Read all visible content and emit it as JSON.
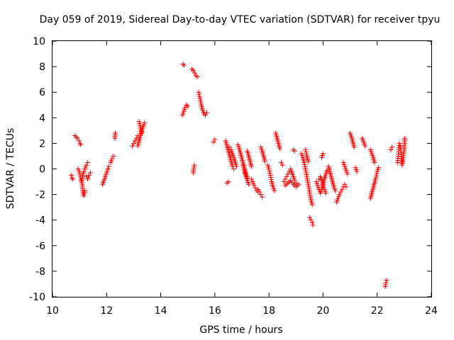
{
  "chart_data": {
    "type": "scatter",
    "title": "Day 059 of 2019, Sidereal Day-to-day VTEC variation (SDTVAR) for receiver tpyu",
    "xlabel": "GPS time / hours",
    "ylabel": "SDTVAR / TECUs",
    "xlim": [
      10,
      24
    ],
    "ylim": [
      -10,
      10
    ],
    "xticks": [
      10,
      12,
      14,
      16,
      18,
      20,
      22,
      24
    ],
    "yticks": [
      -10,
      -8,
      -6,
      -4,
      -2,
      0,
      2,
      4,
      6,
      8,
      10
    ],
    "grid": false,
    "marker": "+",
    "color": "#ff0000",
    "segments": [
      [
        [
          10.7,
          -0.5
        ],
        [
          10.72,
          -0.7
        ],
        [
          10.74,
          -0.8
        ]
      ],
      [
        [
          10.82,
          2.6
        ],
        [
          10.88,
          2.5
        ],
        [
          10.92,
          2.4
        ],
        [
          10.98,
          2.2
        ],
        [
          11.02,
          2.0
        ],
        [
          11.04,
          1.9
        ]
      ],
      [
        [
          10.95,
          0.0
        ],
        [
          11.0,
          -0.3
        ],
        [
          11.05,
          -0.8
        ],
        [
          11.1,
          -1.2
        ],
        [
          11.12,
          -1.8
        ],
        [
          11.15,
          -2.1
        ],
        [
          11.2,
          -1.7
        ]
      ],
      [
        [
          11.08,
          -0.9
        ],
        [
          11.12,
          -0.5
        ],
        [
          11.16,
          -0.2
        ],
        [
          11.2,
          0.0
        ],
        [
          11.25,
          0.3
        ],
        [
          11.3,
          0.5
        ]
      ],
      [
        [
          11.25,
          -0.6
        ],
        [
          11.3,
          -0.8
        ],
        [
          11.35,
          -0.5
        ],
        [
          11.4,
          -0.3
        ]
      ],
      [
        [
          11.85,
          -1.2
        ],
        [
          11.9,
          -0.9
        ],
        [
          11.95,
          -0.6
        ],
        [
          12.0,
          -0.3
        ],
        [
          12.05,
          0.0
        ],
        [
          12.08,
          0.2
        ]
      ],
      [
        [
          12.15,
          0.5
        ],
        [
          12.2,
          0.8
        ],
        [
          12.25,
          1.0
        ]
      ],
      [
        [
          12.3,
          2.4
        ],
        [
          12.32,
          2.8
        ]
      ],
      [
        [
          12.95,
          1.8
        ],
        [
          13.0,
          2.0
        ],
        [
          13.05,
          2.2
        ],
        [
          13.1,
          2.4
        ],
        [
          13.15,
          2.6
        ]
      ],
      [
        [
          13.15,
          1.8
        ],
        [
          13.2,
          2.2
        ],
        [
          13.25,
          2.6
        ],
        [
          13.3,
          3.0
        ],
        [
          13.35,
          3.3
        ],
        [
          13.4,
          3.6
        ]
      ],
      [
        [
          13.2,
          3.7
        ],
        [
          13.25,
          3.2
        ],
        [
          13.3,
          2.8
        ]
      ],
      [
        [
          14.82,
          8.2
        ],
        [
          14.86,
          8.1
        ]
      ],
      [
        [
          14.8,
          4.2
        ],
        [
          14.85,
          4.5
        ],
        [
          14.9,
          4.8
        ],
        [
          14.95,
          5.0
        ],
        [
          15.0,
          4.9
        ]
      ],
      [
        [
          15.15,
          7.8
        ],
        [
          15.2,
          7.7
        ],
        [
          15.25,
          7.5
        ],
        [
          15.3,
          7.3
        ],
        [
          15.35,
          7.2
        ]
      ],
      [
        [
          15.2,
          -0.3
        ],
        [
          15.22,
          0.0
        ],
        [
          15.24,
          0.3
        ]
      ],
      [
        [
          15.4,
          6.0
        ],
        [
          15.45,
          5.5
        ],
        [
          15.5,
          5.0
        ],
        [
          15.55,
          4.6
        ],
        [
          15.6,
          4.3
        ],
        [
          15.65,
          4.2
        ],
        [
          15.7,
          4.4
        ]
      ],
      [
        [
          15.95,
          2.1
        ],
        [
          16.0,
          2.3
        ]
      ],
      [
        [
          16.4,
          2.2
        ],
        [
          16.45,
          1.8
        ],
        [
          16.5,
          1.4
        ],
        [
          16.55,
          1.0
        ],
        [
          16.6,
          0.6
        ],
        [
          16.65,
          0.2
        ],
        [
          16.7,
          0.0
        ]
      ],
      [
        [
          16.45,
          -1.1
        ],
        [
          16.5,
          -1.0
        ]
      ],
      [
        [
          16.55,
          1.7
        ],
        [
          16.6,
          1.5
        ],
        [
          16.65,
          1.2
        ],
        [
          16.7,
          0.9
        ],
        [
          16.75,
          0.5
        ],
        [
          16.8,
          0.2
        ]
      ],
      [
        [
          16.85,
          1.9
        ],
        [
          16.9,
          1.6
        ],
        [
          16.95,
          1.2
        ],
        [
          17.0,
          0.8
        ],
        [
          17.05,
          0.4
        ],
        [
          17.1,
          0.0
        ],
        [
          17.15,
          -0.4
        ],
        [
          17.2,
          -0.7
        ]
      ],
      [
        [
          17.05,
          0.3
        ],
        [
          17.1,
          -0.2
        ],
        [
          17.15,
          -0.6
        ],
        [
          17.2,
          -0.9
        ],
        [
          17.25,
          -1.2
        ]
      ],
      [
        [
          17.2,
          1.4
        ],
        [
          17.25,
          1.0
        ],
        [
          17.3,
          0.6
        ],
        [
          17.35,
          0.2
        ]
      ],
      [
        [
          17.35,
          -0.8
        ],
        [
          17.4,
          -1.0
        ],
        [
          17.45,
          -1.3
        ],
        [
          17.5,
          -1.5
        ],
        [
          17.55,
          -1.7
        ],
        [
          17.6,
          -1.8
        ]
      ],
      [
        [
          17.6,
          -1.6
        ],
        [
          17.65,
          -1.8
        ],
        [
          17.7,
          -2.0
        ],
        [
          17.75,
          -2.2
        ]
      ],
      [
        [
          17.7,
          1.7
        ],
        [
          17.75,
          1.4
        ],
        [
          17.8,
          1.0
        ],
        [
          17.85,
          0.6
        ]
      ],
      [
        [
          17.95,
          0.3
        ],
        [
          18.0,
          0.0
        ],
        [
          18.05,
          -0.5
        ],
        [
          18.1,
          -1.0
        ],
        [
          18.15,
          -1.4
        ],
        [
          18.2,
          -1.7
        ]
      ],
      [
        [
          18.25,
          2.8
        ],
        [
          18.3,
          2.4
        ],
        [
          18.35,
          2.0
        ],
        [
          18.4,
          1.6
        ]
      ],
      [
        [
          18.45,
          0.5
        ],
        [
          18.5,
          0.3
        ]
      ],
      [
        [
          18.55,
          -1.0
        ],
        [
          18.6,
          -0.8
        ],
        [
          18.65,
          -0.6
        ],
        [
          18.7,
          -0.4
        ],
        [
          18.75,
          -0.2
        ],
        [
          18.8,
          0.0
        ],
        [
          18.85,
          -0.3
        ],
        [
          18.9,
          -0.6
        ],
        [
          18.95,
          -0.9
        ],
        [
          19.0,
          -1.1
        ]
      ],
      [
        [
          18.6,
          -1.3
        ],
        [
          18.7,
          -1.1
        ],
        [
          18.8,
          -0.9
        ],
        [
          18.9,
          -1.2
        ],
        [
          19.0,
          -1.4
        ],
        [
          19.1,
          -1.2
        ]
      ],
      [
        [
          18.9,
          1.5
        ],
        [
          18.95,
          1.4
        ]
      ],
      [
        [
          19.2,
          1.2
        ],
        [
          19.25,
          0.9
        ],
        [
          19.3,
          0.5
        ],
        [
          19.35,
          0.0
        ],
        [
          19.4,
          -0.6
        ],
        [
          19.45,
          -1.2
        ],
        [
          19.5,
          -1.8
        ],
        [
          19.55,
          -2.4
        ],
        [
          19.6,
          -2.8
        ]
      ],
      [
        [
          19.35,
          1.5
        ],
        [
          19.4,
          1.0
        ],
        [
          19.45,
          0.6
        ]
      ],
      [
        [
          19.5,
          -3.8
        ],
        [
          19.55,
          -4.0
        ],
        [
          19.6,
          -4.2
        ],
        [
          19.62,
          -4.4
        ]
      ],
      [
        [
          19.75,
          -1.0
        ],
        [
          19.8,
          -1.3
        ],
        [
          19.85,
          -1.6
        ],
        [
          19.9,
          -1.9
        ],
        [
          19.95,
          -1.6
        ],
        [
          20.0,
          -1.2
        ],
        [
          20.05,
          -0.8
        ],
        [
          20.1,
          -0.4
        ],
        [
          20.15,
          -0.1
        ]
      ],
      [
        [
          19.85,
          -0.8
        ],
        [
          19.9,
          -0.6
        ],
        [
          19.95,
          -0.9
        ],
        [
          20.0,
          -1.3
        ],
        [
          20.05,
          -1.6
        ],
        [
          20.1,
          -1.9
        ]
      ],
      [
        [
          19.95,
          0.9
        ],
        [
          20.0,
          1.2
        ]
      ],
      [
        [
          20.2,
          0.2
        ],
        [
          20.25,
          -0.2
        ],
        [
          20.3,
          -0.6
        ],
        [
          20.35,
          -1.0
        ],
        [
          20.4,
          -1.4
        ],
        [
          20.45,
          -1.7
        ]
      ],
      [
        [
          20.5,
          -2.6
        ],
        [
          20.55,
          -2.3
        ],
        [
          20.6,
          -2.0
        ],
        [
          20.65,
          -1.8
        ],
        [
          20.7,
          -1.6
        ],
        [
          20.75,
          -1.4
        ],
        [
          20.8,
          -1.2
        ],
        [
          20.85,
          -1.4
        ]
      ],
      [
        [
          20.75,
          0.5
        ],
        [
          20.8,
          0.2
        ],
        [
          20.85,
          -0.1
        ],
        [
          20.9,
          -0.4
        ]
      ],
      [
        [
          21.0,
          2.8
        ],
        [
          21.05,
          2.5
        ],
        [
          21.1,
          2.1
        ],
        [
          21.15,
          1.7
        ]
      ],
      [
        [
          21.2,
          0.1
        ],
        [
          21.25,
          -0.2
        ]
      ],
      [
        [
          21.45,
          2.4
        ],
        [
          21.5,
          2.1
        ],
        [
          21.55,
          1.8
        ]
      ],
      [
        [
          21.75,
          1.5
        ],
        [
          21.8,
          1.2
        ],
        [
          21.85,
          0.9
        ],
        [
          21.9,
          0.5
        ]
      ],
      [
        [
          21.75,
          -2.3
        ],
        [
          21.8,
          -1.9
        ],
        [
          21.85,
          -1.5
        ],
        [
          21.9,
          -1.1
        ],
        [
          21.95,
          -0.7
        ],
        [
          22.0,
          -0.2
        ],
        [
          22.05,
          0.1
        ]
      ],
      [
        [
          22.3,
          -9.2
        ],
        [
          22.32,
          -8.9
        ],
        [
          22.35,
          -8.7
        ]
      ],
      [
        [
          22.5,
          1.5
        ],
        [
          22.55,
          1.7
        ]
      ],
      [
        [
          22.75,
          0.5
        ],
        [
          22.78,
          1.0
        ],
        [
          22.8,
          1.5
        ],
        [
          22.82,
          2.0
        ],
        [
          22.85,
          1.8
        ],
        [
          22.88,
          1.3
        ],
        [
          22.9,
          0.8
        ],
        [
          22.92,
          0.3
        ],
        [
          22.95,
          0.7
        ],
        [
          22.98,
          1.2
        ],
        [
          23.0,
          1.6
        ],
        [
          23.02,
          2.4
        ]
      ]
    ]
  }
}
